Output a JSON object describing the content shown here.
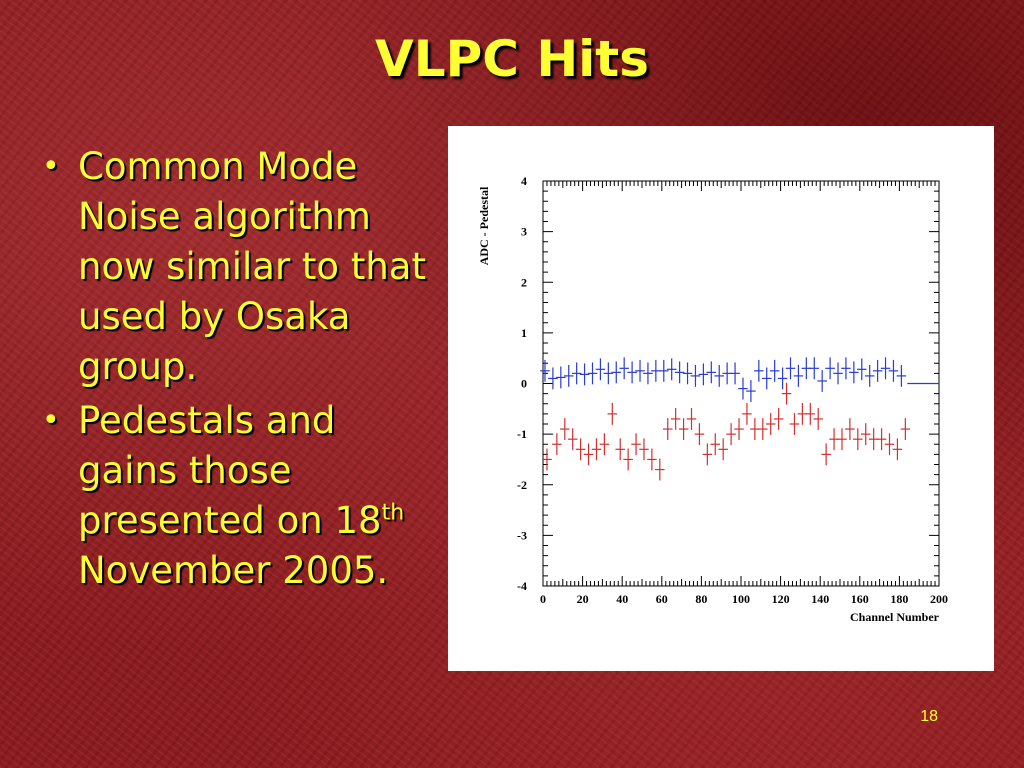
{
  "slide": {
    "title": "VLPC Hits",
    "bullets": [
      {
        "parts": [
          "Common Mode Noise algorithm now similar to that used by Osaka group."
        ]
      },
      {
        "parts": [
          "Pedestals and gains those presented on 18",
          "th",
          " November 2005."
        ]
      }
    ],
    "page_number": "18",
    "title_color": "#ffff33",
    "background_color": "#8e1a1e"
  },
  "chart_data": {
    "type": "scatter",
    "xlabel": "Channel Number",
    "ylabel": "ADC - Pedestal",
    "xlim": [
      0,
      200
    ],
    "ylim": [
      -4,
      4
    ],
    "x_ticks": [
      0,
      20,
      40,
      60,
      80,
      100,
      120,
      140,
      160,
      180,
      200
    ],
    "y_ticks": [
      4,
      3,
      2,
      1,
      0,
      -1,
      -2,
      -3,
      -4
    ],
    "x_tick_labels": [
      "0",
      "20",
      "40",
      "60",
      "80",
      "100",
      "120",
      "140",
      "160",
      "180",
      "200"
    ],
    "y_tick_labels": [
      "4",
      "3",
      "2",
      "1",
      "0",
      "-1",
      "-2",
      "-3",
      "-4"
    ],
    "grid": false,
    "series": [
      {
        "color": "#2a3bd6",
        "marker": "cross-error-bar",
        "x": [
          1,
          5,
          9,
          13,
          17,
          21,
          25,
          29,
          33,
          37,
          41,
          45,
          49,
          53,
          57,
          61,
          65,
          69,
          73,
          77,
          81,
          85,
          89,
          93,
          97,
          101,
          105,
          109,
          113,
          117,
          121,
          125,
          129,
          133,
          137,
          141,
          145,
          149,
          153,
          157,
          161,
          165,
          169,
          173,
          177,
          181
        ],
        "y": [
          0.25,
          0.1,
          0.12,
          0.15,
          0.2,
          0.18,
          0.2,
          0.28,
          0.2,
          0.22,
          0.3,
          0.22,
          0.25,
          0.2,
          0.25,
          0.25,
          0.28,
          0.22,
          0.2,
          0.15,
          0.18,
          0.22,
          0.15,
          0.2,
          0.2,
          -0.1,
          -0.15,
          0.25,
          0.1,
          0.25,
          0.1,
          0.3,
          0.15,
          0.3,
          0.3,
          0.05,
          0.3,
          0.2,
          0.3,
          0.22,
          0.28,
          0.15,
          0.25,
          0.3,
          0.25,
          0.15
        ]
      },
      {
        "color": "#2a3bd6",
        "marker": "line",
        "x": [
          184,
          200
        ],
        "y": [
          0,
          0
        ]
      },
      {
        "color": "#d42f2f",
        "marker": "cross-error-bar",
        "x": [
          2,
          7,
          11,
          15,
          19,
          23,
          27,
          31,
          35,
          39,
          43,
          47,
          51,
          55,
          59,
          63,
          67,
          71,
          75,
          79,
          83,
          87,
          91,
          95,
          99,
          103,
          107,
          111,
          115,
          119,
          123,
          127,
          131,
          135,
          139,
          143,
          147,
          151,
          155,
          159,
          163,
          167,
          171,
          175,
          179,
          183
        ],
        "y": [
          -1.5,
          -1.2,
          -0.9,
          -1.1,
          -1.3,
          -1.4,
          -1.3,
          -1.2,
          -0.6,
          -1.3,
          -1.5,
          -1.2,
          -1.3,
          -1.5,
          -1.7,
          -0.9,
          -0.7,
          -0.9,
          -0.7,
          -1.0,
          -1.4,
          -1.2,
          -1.3,
          -1.0,
          -0.9,
          -0.6,
          -0.9,
          -0.9,
          -0.8,
          -0.7,
          -0.2,
          -0.8,
          -0.6,
          -0.6,
          -0.7,
          -1.4,
          -1.1,
          -1.1,
          -0.9,
          -1.1,
          -1.0,
          -1.1,
          -1.1,
          -1.2,
          -1.3,
          -0.9
        ]
      }
    ]
  }
}
